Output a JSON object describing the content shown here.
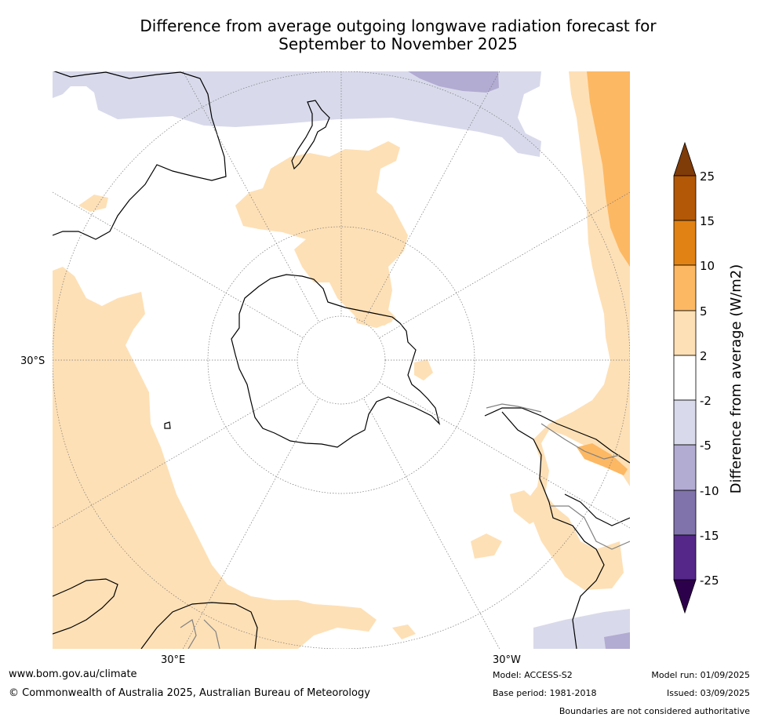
{
  "title": {
    "line1": "Difference from average outgoing longwave radiation forecast for",
    "line2": "September to November 2025"
  },
  "map": {
    "projection": "south polar stereographic",
    "lat_labels": [
      "30°S"
    ],
    "lon_labels": [
      "30°E",
      "30°W"
    ]
  },
  "colorbar": {
    "title": "Difference from average (W/m2)",
    "tick_labels": [
      "25",
      "15",
      "10",
      "5",
      "2",
      "-2",
      "-5",
      "-10",
      "-15",
      "-25"
    ],
    "colors": [
      "#7f3b08",
      "#b35806",
      "#e08214",
      "#fdb863",
      "#fee0b6",
      "#ffffff",
      "#d8daeb",
      "#b2abd2",
      "#8073ac",
      "#542788",
      "#2d004b"
    ]
  },
  "footer": {
    "website": "www.bom.gov.au/climate",
    "copyright": "© Commonwealth of Australia 2025, Australian Bureau of Meteorology",
    "model": "Model: ACCESS-S2",
    "base_period": "Base period: 1981-2018",
    "model_run": "Model run: 01/09/2025",
    "issued": "Issued: 03/09/2025",
    "disclaimer": "Boundaries are not considered authoritative"
  }
}
